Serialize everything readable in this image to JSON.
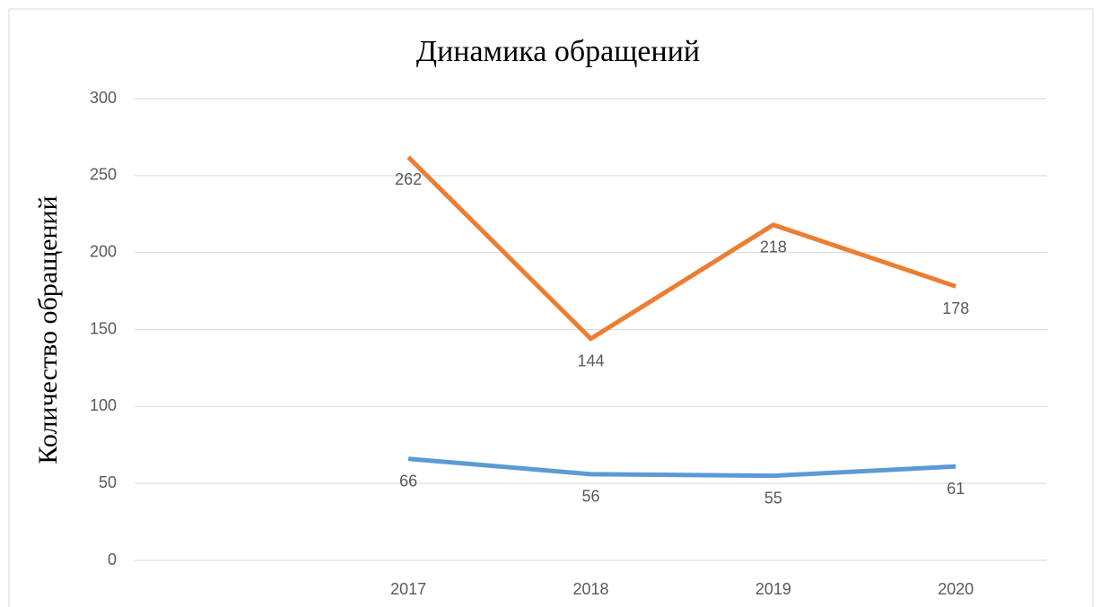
{
  "chart_data": {
    "type": "line",
    "title": "Динамика обращений",
    "ylabel": "Количество обращений",
    "categories": [
      null,
      "2017",
      "2018",
      "2019",
      "2020"
    ],
    "series": [
      {
        "color": "#5b9bd5",
        "values": [
          null,
          66,
          56,
          55,
          61
        ]
      },
      {
        "color": "#ed7d31",
        "values": [
          null,
          262,
          144,
          218,
          178
        ]
      }
    ],
    "ylim": [
      0,
      300
    ],
    "yticks": [
      0,
      50,
      100,
      150,
      200,
      250,
      300
    ],
    "grid": true
  }
}
